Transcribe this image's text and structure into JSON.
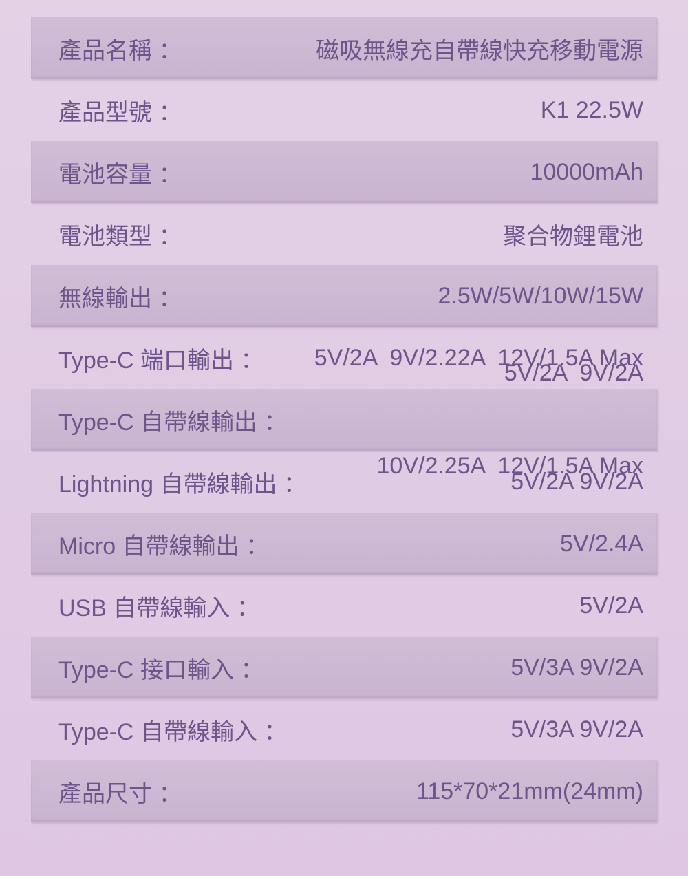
{
  "colors": {
    "page_bg_top": "#e4d1e6",
    "page_bg_mid": "#e0cbe4",
    "page_bg_bottom": "#dfc7e4",
    "band_bg_top": "#d1bdd6",
    "band_bg_bottom": "#c9b4d0",
    "text": "#6e5589"
  },
  "spec_rows": [
    {
      "label": "產品名稱 ：",
      "value": "磁吸無線充自帶線快充移動電源",
      "shaded": true
    },
    {
      "label": "產品型號 ：",
      "value": "K1 22.5W",
      "shaded": false
    },
    {
      "label": "電池容量 ：",
      "value": "10000mAh",
      "shaded": true
    },
    {
      "label": "電池類型 ：",
      "value": "聚合物鋰電池",
      "shaded": false
    },
    {
      "label": "無線輸出 ：",
      "value": "2.5W/5W/10W/15W",
      "shaded": true
    },
    {
      "label": "Type-C 端口輸出 ：",
      "value": "5V/2A  9V/2.22A  12V/1.5A Max",
      "shaded": false
    },
    {
      "label": "Type-C 自帶線輸出 ：",
      "value": "5V/2A  9V/2A",
      "value2": "10V/2.25A  12V/1.5A Max",
      "shaded": true
    },
    {
      "label": "Lightning 自帶線輸出 ：",
      "value": "5V/2A 9V/2A",
      "shaded": false
    },
    {
      "label": "Micro 自帶線輸出 ：",
      "value": "5V/2.4A",
      "shaded": true
    },
    {
      "label": "USB 自帶線輸入 ：",
      "value": "5V/2A",
      "shaded": false
    },
    {
      "label": "Type-C 接口輸入 ：",
      "value": "5V/3A 9V/2A",
      "shaded": true
    },
    {
      "label": "Type-C 自帶線輸入 ：",
      "value": "5V/3A 9V/2A",
      "shaded": false
    },
    {
      "label": "產品尺寸 ：",
      "value": "115*70*21mm(24mm)",
      "shaded": true
    }
  ]
}
